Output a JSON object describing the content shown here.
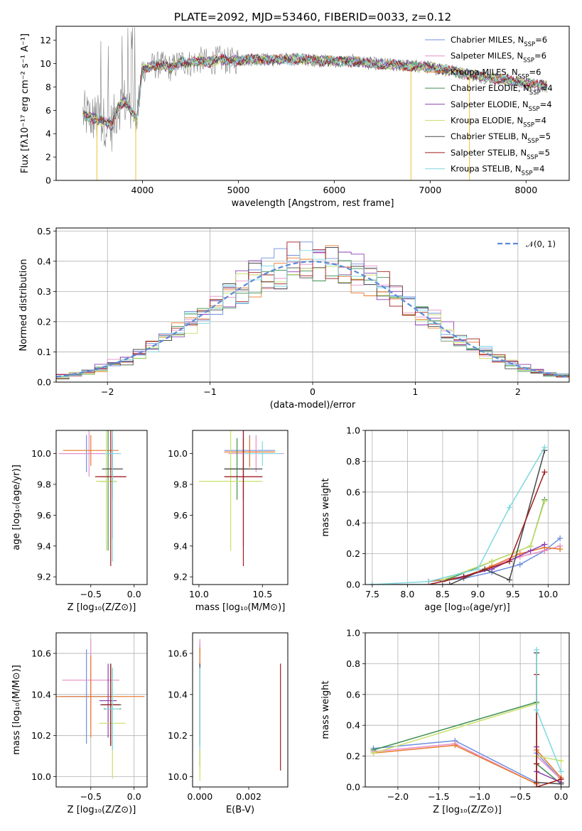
{
  "title": "PLATE=2092, MJD=53460, FIBERID=0033, z=0.12",
  "colors": {
    "chabrier_miles": "#6f8fe0",
    "salpeter_miles": "#e88fc8",
    "kroupa_miles": "#e9782a",
    "chabrier_elodie": "#3f8f4f",
    "salpeter_elodie": "#8e3fb0",
    "kroupa_elodie": "#c8e06a",
    "chabrier_stelib": "#4a4a4a",
    "salpeter_stelib": "#a01c1c",
    "kroupa_stelib": "#7fd8e0",
    "data": "#808080"
  },
  "chart_data": [
    {
      "id": "spectrum",
      "type": "line",
      "xlabel": "wavelength [Angstrom, rest frame]",
      "ylabel": "Flux [fλ10⁻¹⁷ erg cm⁻² s⁻¹ A⁻¹]",
      "xlim": [
        3100,
        8450
      ],
      "ylim": [
        0,
        13.2
      ],
      "xticks": [
        4000,
        5000,
        6000,
        7000,
        8000
      ],
      "yticks": [
        0,
        2,
        4,
        6,
        8,
        10,
        12
      ],
      "legend_position": "right",
      "legend": [
        {
          "label": "Chabrier MILES, N",
          "sub": "SSP",
          "suffix": "=6",
          "color_key": "chabrier_miles"
        },
        {
          "label": "Salpeter MILES, N",
          "sub": "SSP",
          "suffix": "=6",
          "color_key": "salpeter_miles"
        },
        {
          "label": "Kroupa MILES, N",
          "sub": "SSP",
          "suffix": "=6",
          "color_key": "kroupa_miles"
        },
        {
          "label": "Chabrier ELODIE, N",
          "sub": "SSP",
          "suffix": "=4",
          "color_key": "chabrier_elodie"
        },
        {
          "label": "Salpeter ELODIE, N",
          "sub": "SSP",
          "suffix": "=4",
          "color_key": "salpeter_elodie"
        },
        {
          "label": "Kroupa ELODIE, N",
          "sub": "SSP",
          "suffix": "=4",
          "color_key": "kroupa_elodie"
        },
        {
          "label": "Chabrier STELIB, N",
          "sub": "SSP",
          "suffix": "=5",
          "color_key": "chabrier_stelib"
        },
        {
          "label": "Salpeter STELIB, N",
          "sub": "SSP",
          "suffix": "=5",
          "color_key": "salpeter_stelib"
        },
        {
          "label": "Kroupa STELIB, N",
          "sub": "SSP",
          "suffix": "=4",
          "color_key": "kroupa_stelib"
        }
      ],
      "model_curve": {
        "x": [
          3380,
          3450,
          3500,
          3560,
          3620,
          3680,
          3750,
          3820,
          3880,
          3940,
          4000,
          4100,
          4200,
          4300,
          4400,
          4500,
          4600,
          4700,
          4800,
          4900,
          5000,
          5200,
          5400,
          5600,
          5800,
          6000,
          6200,
          6400,
          6600,
          6800,
          7000,
          7200,
          7400,
          7600,
          7800,
          8000,
          8200
        ],
        "y": [
          5.6,
          5.4,
          5.3,
          5.2,
          5.0,
          4.6,
          6.4,
          6.8,
          6.0,
          5.2,
          9.5,
          9.8,
          9.9,
          9.6,
          10.2,
          10.0,
          10.3,
          10.1,
          10.4,
          10.2,
          10.3,
          10.4,
          10.3,
          10.4,
          10.3,
          10.2,
          10.2,
          10.0,
          9.9,
          9.8,
          9.7,
          9.4,
          9.1,
          8.8,
          8.6,
          8.3,
          8.1
        ]
      },
      "data_envelope": [
        10,
        11.5,
        13.2
      ]
    },
    {
      "id": "residuals",
      "type": "histogram",
      "xlabel": "(data-model)/error",
      "ylabel": "Normed distribution",
      "xlim": [
        -2.5,
        2.5
      ],
      "ylim": [
        0,
        0.51
      ],
      "xticks": [
        -2,
        -1,
        0,
        1,
        2
      ],
      "yticks": [
        0.0,
        0.1,
        0.2,
        0.3,
        0.4,
        0.5
      ],
      "legend_position": "top-right",
      "legend": [
        {
          "label": "𝒩(0, 1)",
          "color": "#5b8bd8"
        }
      ]
    },
    {
      "id": "age_vs_Z",
      "type": "errorbar",
      "xlabel": "Z [log₁₀(Z/Z⊙)]",
      "ylabel": "age  [log₁₀(age/yr)]",
      "xlim": [
        -0.9,
        0.15
      ],
      "ylim": [
        9.15,
        10.15
      ],
      "xticks": [
        -0.5,
        0.0
      ],
      "yticks": [
        9.2,
        9.4,
        9.6,
        9.8,
        10.0
      ],
      "points": [
        {
          "x": -0.55,
          "y": 10.0,
          "xe": 0.3,
          "ye": 0.12,
          "color_key": "chabrier_miles"
        },
        {
          "x": -0.52,
          "y": 10.0,
          "xe": 0.35,
          "ye": 0.15,
          "color_key": "salpeter_miles"
        },
        {
          "x": -0.5,
          "y": 10.02,
          "xe": 0.32,
          "ye": 0.1,
          "color_key": "kroupa_miles"
        },
        {
          "x": -0.3,
          "y": 9.82,
          "xe": 0.1,
          "ye": 0.45,
          "color_key": "chabrier_elodie"
        },
        {
          "x": -0.25,
          "y": 9.85,
          "xe": 0.15,
          "ye": 0.4,
          "color_key": "salpeter_elodie"
        },
        {
          "x": -0.32,
          "y": 9.82,
          "xe": 0.12,
          "ye": 0.45,
          "color_key": "kroupa_elodie"
        },
        {
          "x": -0.25,
          "y": 9.9,
          "xe": 0.12,
          "ye": 0.2,
          "color_key": "chabrier_stelib"
        },
        {
          "x": -0.27,
          "y": 9.85,
          "xe": 0.18,
          "ye": 0.58,
          "color_key": "salpeter_stelib"
        },
        {
          "x": -0.25,
          "y": 10.0,
          "xe": 0.1,
          "ye": 0.7,
          "color_key": "kroupa_stelib"
        }
      ]
    },
    {
      "id": "age_vs_mass",
      "type": "errorbar",
      "xlabel": "mass [log₁₀(M/M⊙)]",
      "ylabel": "",
      "xlim": [
        9.95,
        10.7
      ],
      "ylim": [
        9.15,
        10.15
      ],
      "xticks": [
        10.0,
        10.5
      ],
      "yticks": [
        9.2,
        9.4,
        9.6,
        9.8,
        10.0
      ],
      "points": [
        {
          "x": 10.4,
          "y": 10.02,
          "xe": 0.2,
          "ye": 0.1,
          "color_key": "chabrier_miles"
        },
        {
          "x": 10.45,
          "y": 10.0,
          "xe": 0.22,
          "ye": 0.12,
          "color_key": "salpeter_miles"
        },
        {
          "x": 10.4,
          "y": 10.01,
          "xe": 0.2,
          "ye": 0.1,
          "color_key": "kroupa_miles"
        },
        {
          "x": 10.3,
          "y": 9.9,
          "xe": 0.1,
          "ye": 0.2,
          "color_key": "chabrier_elodie"
        },
        {
          "x": 10.35,
          "y": 9.85,
          "xe": 0.15,
          "ye": 0.45,
          "color_key": "salpeter_elodie"
        },
        {
          "x": 10.25,
          "y": 9.82,
          "xe": 0.25,
          "ye": 0.45,
          "color_key": "kroupa_elodie"
        },
        {
          "x": 10.35,
          "y": 9.9,
          "xe": 0.15,
          "ye": 0.2,
          "color_key": "chabrier_stelib"
        },
        {
          "x": 10.35,
          "y": 9.85,
          "xe": 0.15,
          "ye": 0.58,
          "color_key": "salpeter_stelib"
        },
        {
          "x": 10.5,
          "y": 10.0,
          "xe": 0.15,
          "ye": 0.08,
          "color_key": "kroupa_stelib"
        }
      ]
    },
    {
      "id": "weight_vs_age",
      "type": "line",
      "xlabel": "age  [log₁₀(age/yr)]",
      "ylabel": "mass weight",
      "xlim": [
        7.4,
        10.3
      ],
      "ylim": [
        0,
        1.0
      ],
      "xticks": [
        7.5,
        8.0,
        8.5,
        9.0,
        9.5,
        10.0
      ],
      "yticks": [
        0.0,
        0.2,
        0.4,
        0.6,
        0.8,
        1.0
      ],
      "series": [
        {
          "color_key": "chabrier_miles",
          "x": [
            8.3,
            8.8,
            9.2,
            9.6,
            9.95,
            10.17
          ],
          "y": [
            0.02,
            0.04,
            0.08,
            0.13,
            0.22,
            0.3
          ]
        },
        {
          "color_key": "salpeter_miles",
          "x": [
            8.3,
            8.8,
            9.2,
            9.6,
            9.95,
            10.17
          ],
          "y": [
            0.02,
            0.05,
            0.12,
            0.18,
            0.22,
            0.25
          ]
        },
        {
          "color_key": "kroupa_miles",
          "x": [
            8.3,
            8.8,
            9.2,
            9.6,
            9.95,
            10.17
          ],
          "y": [
            0.02,
            0.05,
            0.12,
            0.2,
            0.24,
            0.23
          ]
        },
        {
          "color_key": "chabrier_elodie",
          "x": [
            8.5,
            9.2,
            9.75,
            9.95
          ],
          "y": [
            0.02,
            0.15,
            0.25,
            0.55
          ]
        },
        {
          "color_key": "salpeter_elodie",
          "x": [
            8.5,
            9.2,
            9.75,
            9.95
          ],
          "y": [
            0.02,
            0.1,
            0.22,
            0.26
          ]
        },
        {
          "color_key": "kroupa_elodie",
          "x": [
            8.5,
            9.2,
            9.75,
            9.95
          ],
          "y": [
            0.03,
            0.15,
            0.25,
            0.54
          ]
        },
        {
          "color_key": "chabrier_stelib",
          "x": [
            7.5,
            8.6,
            9.1,
            9.45,
            9.95
          ],
          "y": [
            0.0,
            0.0,
            0.1,
            0.03,
            0.87
          ]
        },
        {
          "color_key": "salpeter_stelib",
          "x": [
            8.3,
            8.8,
            9.45,
            9.95
          ],
          "y": [
            0.0,
            0.05,
            0.15,
            0.73
          ]
        },
        {
          "color_key": "kroupa_stelib",
          "x": [
            7.5,
            8.3,
            9.0,
            9.45,
            9.95
          ],
          "y": [
            0.0,
            0.02,
            0.1,
            0.5,
            0.89
          ]
        }
      ]
    },
    {
      "id": "mass_vs_Z",
      "type": "errorbar",
      "xlabel": "Z [log₁₀(Z/Z⊙)]",
      "ylabel": "mass [log₁₀(M/M⊙)]",
      "xlim": [
        -0.9,
        0.15
      ],
      "ylim": [
        9.95,
        10.7
      ],
      "xticks": [
        -0.5,
        0.0
      ],
      "yticks": [
        10.0,
        10.2,
        10.4,
        10.6
      ],
      "points": [
        {
          "x": -0.55,
          "y": 10.39,
          "xe": 0.3,
          "ye": 0.23,
          "color_key": "chabrier_miles"
        },
        {
          "x": -0.5,
          "y": 10.47,
          "xe": 0.33,
          "ye": 0.2,
          "color_key": "salpeter_miles"
        },
        {
          "x": -0.5,
          "y": 10.39,
          "xe": 0.62,
          "ye": 0.2,
          "color_key": "kroupa_miles"
        },
        {
          "x": -0.25,
          "y": 10.33,
          "xe": 0.1,
          "ye": 0.2,
          "color_key": "chabrier_elodie"
        },
        {
          "x": -0.3,
          "y": 10.37,
          "xe": 0.1,
          "ye": 0.18,
          "color_key": "salpeter_elodie"
        },
        {
          "x": -0.25,
          "y": 10.26,
          "xe": 0.15,
          "ye": 0.27,
          "color_key": "kroupa_elodie"
        },
        {
          "x": -0.27,
          "y": 10.35,
          "xe": 0.12,
          "ye": 0.2,
          "color_key": "chabrier_stelib"
        },
        {
          "x": -0.27,
          "y": 10.35,
          "xe": 0.1,
          "ye": 0.2,
          "color_key": "salpeter_stelib"
        },
        {
          "x": -0.25,
          "y": 10.33,
          "xe": 0.08,
          "ye": 0.2,
          "color_key": "kroupa_stelib"
        }
      ]
    },
    {
      "id": "mass_vs_EBV",
      "type": "errorbar",
      "xlabel": "E(B-V)",
      "ylabel": "",
      "xlim": [
        -0.0003,
        0.0036
      ],
      "ylim": [
        9.95,
        10.7
      ],
      "xticks": [
        0.0,
        0.002
      ],
      "yticks": [
        10.0,
        10.2,
        10.4,
        10.6
      ],
      "points": [
        {
          "x": 0.0,
          "y": 10.4,
          "xe": 0.0,
          "ye": 0.25,
          "color_key": "chabrier_miles"
        },
        {
          "x": 0.0,
          "y": 10.45,
          "xe": 0.0,
          "ye": 0.22,
          "color_key": "salpeter_miles"
        },
        {
          "x": 0.0,
          "y": 10.4,
          "xe": 0.0,
          "ye": 0.23,
          "color_key": "kroupa_miles"
        },
        {
          "x": 0.0,
          "y": 10.3,
          "xe": 0.0,
          "ye": 0.25,
          "color_key": "chabrier_elodie"
        },
        {
          "x": 0.0,
          "y": 10.35,
          "xe": 0.0,
          "ye": 0.2,
          "color_key": "salpeter_elodie"
        },
        {
          "x": 0.0,
          "y": 10.26,
          "xe": 0.0,
          "ye": 0.28,
          "color_key": "kroupa_elodie"
        },
        {
          "x": 0.0,
          "y": 10.35,
          "xe": 0.0,
          "ye": 0.2,
          "color_key": "chabrier_stelib"
        },
        {
          "x": 0.0033,
          "y": 10.29,
          "xe": 0.0,
          "ye": 0.26,
          "color_key": "salpeter_stelib"
        },
        {
          "x": 0.0,
          "y": 10.33,
          "xe": 0.0,
          "ye": 0.2,
          "color_key": "kroupa_stelib"
        }
      ]
    },
    {
      "id": "weight_vs_Z",
      "type": "line",
      "xlabel": "Z [log₁₀(Z/Z⊙)]",
      "ylabel": "mass weight",
      "xlim": [
        -2.4,
        0.1
      ],
      "ylim": [
        0,
        1.0
      ],
      "xticks": [
        -2.0,
        -1.5,
        -1.0,
        -0.5,
        0.0
      ],
      "yticks": [
        0.0,
        0.2,
        0.4,
        0.6,
        0.8,
        1.0
      ],
      "series": [
        {
          "color_key": "chabrier_miles",
          "x": [
            -2.3,
            -1.3,
            -0.3,
            -0.3,
            0.0
          ],
          "y": [
            0.25,
            0.3,
            0.03,
            0.22,
            0.05
          ]
        },
        {
          "color_key": "salpeter_miles",
          "x": [
            -2.3,
            -1.3,
            -0.3,
            -0.3,
            0.0
          ],
          "y": [
            0.23,
            0.28,
            0.02,
            0.2,
            0.05
          ]
        },
        {
          "color_key": "kroupa_miles",
          "x": [
            -2.3,
            -1.3,
            -0.3,
            -0.3,
            0.0
          ],
          "y": [
            0.22,
            0.27,
            0.02,
            0.24,
            0.06
          ]
        },
        {
          "color_key": "chabrier_elodie",
          "x": [
            -2.3,
            -0.3,
            -0.3,
            0.0
          ],
          "y": [
            0.24,
            0.55,
            0.15,
            0.02
          ]
        },
        {
          "color_key": "salpeter_elodie",
          "x": [
            -0.3,
            -0.3,
            0.0
          ],
          "y": [
            0.26,
            0.1,
            0.03
          ]
        },
        {
          "color_key": "kroupa_elodie",
          "x": [
            -2.3,
            -0.3,
            -0.3,
            0.0
          ],
          "y": [
            0.22,
            0.54,
            0.2,
            0.17
          ]
        },
        {
          "color_key": "chabrier_stelib",
          "x": [
            -0.3,
            -0.3,
            0.0
          ],
          "y": [
            0.87,
            0.03,
            0.02
          ]
        },
        {
          "color_key": "salpeter_stelib",
          "x": [
            -0.3,
            -0.3,
            -0.3,
            0.0
          ],
          "y": [
            0.73,
            0.15,
            0.0,
            0.05
          ]
        },
        {
          "color_key": "kroupa_stelib",
          "x": [
            -0.3,
            -0.3,
            0.0
          ],
          "y": [
            0.89,
            0.5,
            0.1
          ]
        }
      ]
    }
  ]
}
